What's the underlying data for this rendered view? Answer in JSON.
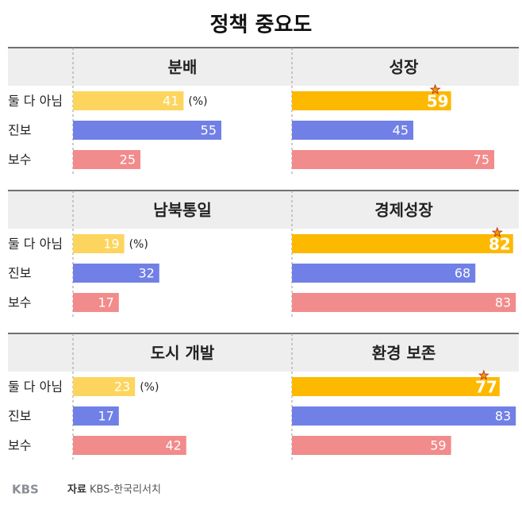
{
  "title": "정책 중요도",
  "chart_data": [
    {
      "type": "bar",
      "categories": [
        "둘 다 아님",
        "진보",
        "보수"
      ],
      "unit": "(%)",
      "xlim": [
        0,
        100
      ],
      "series": [
        {
          "name": "분배",
          "values": [
            41,
            55,
            25
          ],
          "colors": [
            "#fdd55e",
            "#7080e6",
            "#f28b8b"
          ]
        },
        {
          "name": "성장",
          "values": [
            59,
            45,
            75
          ],
          "colors": [
            "#fdb900",
            "#7080e6",
            "#f28b8b"
          ],
          "highlight": true
        }
      ]
    },
    {
      "type": "bar",
      "categories": [
        "둘 다 아님",
        "진보",
        "보수"
      ],
      "unit": "(%)",
      "xlim": [
        0,
        100
      ],
      "series": [
        {
          "name": "남북통일",
          "values": [
            19,
            32,
            17
          ],
          "colors": [
            "#fdd55e",
            "#7080e6",
            "#f28b8b"
          ]
        },
        {
          "name": "경제성장",
          "values": [
            82,
            68,
            83
          ],
          "colors": [
            "#fdb900",
            "#7080e6",
            "#f28b8b"
          ],
          "highlight": true
        }
      ]
    },
    {
      "type": "bar",
      "categories": [
        "둘 다 아님",
        "진보",
        "보수"
      ],
      "unit": "(%)",
      "xlim": [
        0,
        100
      ],
      "series": [
        {
          "name": "도시 개발",
          "values": [
            23,
            17,
            42
          ],
          "colors": [
            "#fdd55e",
            "#7080e6",
            "#f28b8b"
          ]
        },
        {
          "name": "환경 보존",
          "values": [
            77,
            83,
            59
          ],
          "colors": [
            "#fdb900",
            "#7080e6",
            "#f28b8b"
          ],
          "highlight": true
        }
      ]
    }
  ],
  "source": {
    "logo": "KBS",
    "label": "자료",
    "text": "KBS-한국리서치"
  }
}
